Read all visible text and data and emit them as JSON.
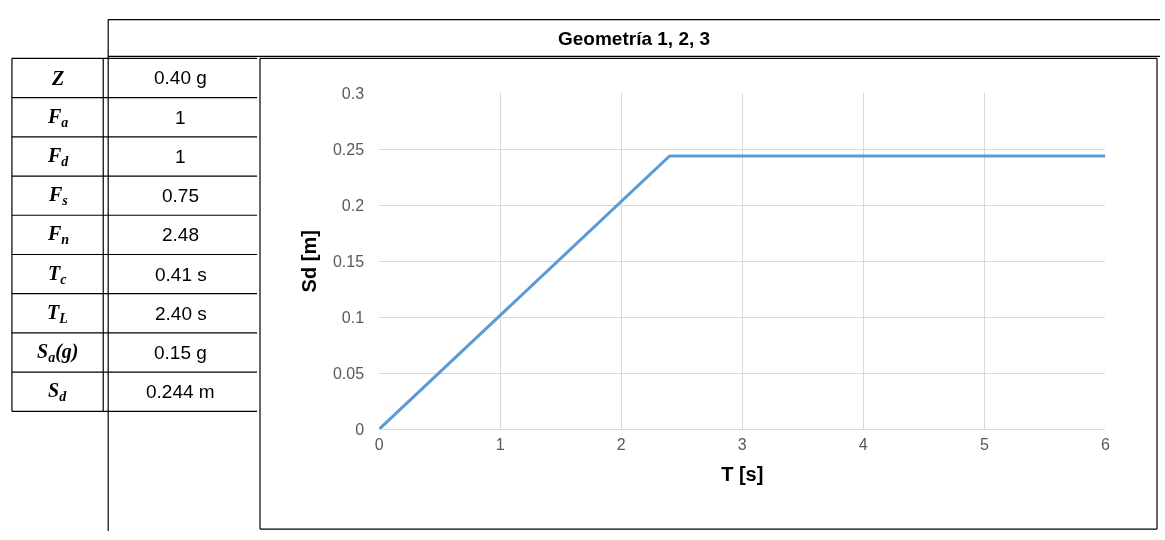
{
  "chart_data": [
    {
      "type": "other",
      "annotations": [
        "Z",
        "0.40 g",
        "F$_{a}$",
        "1",
        "F$_{d}$",
        "1",
        "F$_{s}$",
        "0.75",
        "F$_{n}$",
        "2.48",
        "T$_{c}$",
        "0.41 s",
        "T$_{L}$",
        "2.40 s",
        "S$_{a}$(g)",
        "0.15 g",
        "S$_{d}$",
        "0.244 m"
      ]
    },
    {
      "type": "line",
      "title": "Geometría 1, 2, 3",
      "xlabel": "T [s]",
      "ylabel": "Sd [m]",
      "x": [
        0,
        2.4,
        6
      ],
      "series": [
        {
          "color": "#5b9bd5",
          "values": [
            0,
            0.244,
            0.244
          ]
        }
      ],
      "xlim": [
        0,
        6
      ],
      "xticks": [
        0,
        1,
        2,
        3,
        4,
        5,
        6
      ],
      "ylim": [
        0,
        0.3
      ],
      "yticks": [
        0,
        0.05,
        0.1,
        0.15,
        0.2,
        0.25,
        0.3
      ],
      "grid": true,
      "marker": "none",
      "line_style": "solid"
    }
  ]
}
